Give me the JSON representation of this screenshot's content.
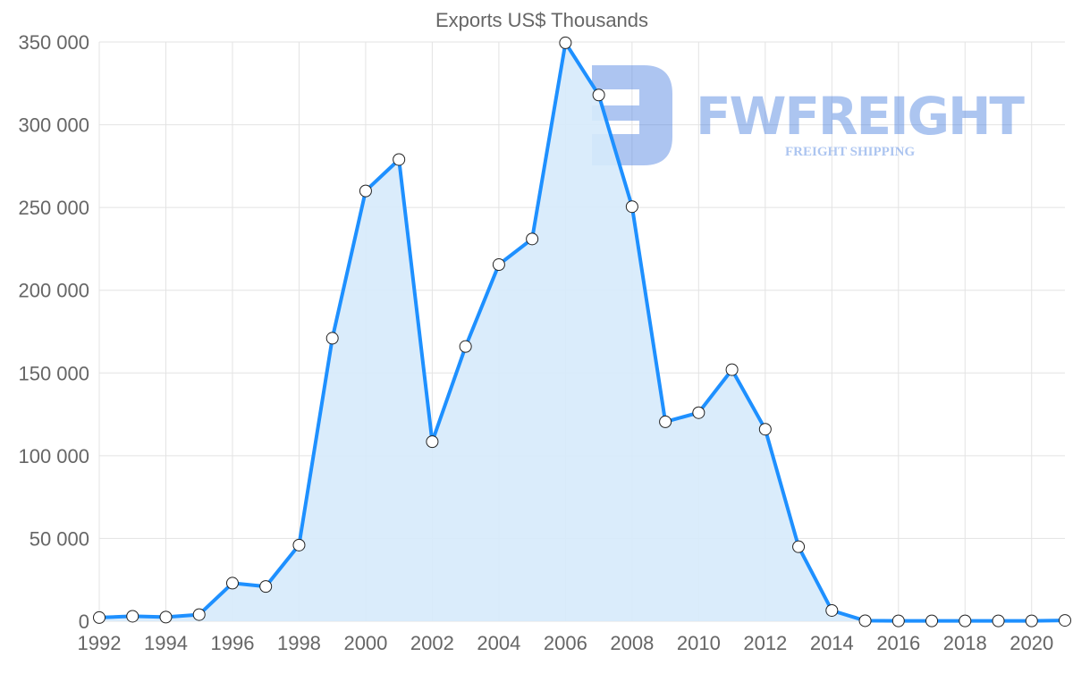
{
  "chart_data": {
    "type": "area",
    "title": "Exports US$ Thousands",
    "xlabel": "",
    "ylabel": "",
    "x": [
      1992,
      1993,
      1994,
      1995,
      1996,
      1997,
      1998,
      1999,
      2000,
      2001,
      2002,
      2003,
      2004,
      2005,
      2006,
      2007,
      2008,
      2009,
      2010,
      2011,
      2012,
      2013,
      2014,
      2015,
      2016,
      2017,
      2018,
      2019,
      2020,
      2021
    ],
    "series": [
      {
        "name": "Exports US$ Thousands",
        "values": [
          2200,
          3000,
          2500,
          4000,
          23000,
          21000,
          46000,
          171000,
          260000,
          279000,
          108500,
          166000,
          215500,
          231000,
          349500,
          318000,
          250500,
          120500,
          126000,
          152000,
          116000,
          45000,
          6500,
          300,
          200,
          200,
          200,
          200,
          200,
          500
        ]
      }
    ],
    "xlim": [
      1992,
      2021
    ],
    "ylim": [
      0,
      350000
    ],
    "x_ticks": [
      "1992",
      "1994",
      "1996",
      "1998",
      "2000",
      "2002",
      "2004",
      "2006",
      "2008",
      "2010",
      "2012",
      "2014",
      "2016",
      "2018",
      "2020"
    ],
    "y_ticks": [
      "0",
      "50 000",
      "100 000",
      "150 000",
      "200 000",
      "250 000",
      "300 000",
      "350 000"
    ],
    "grid": true,
    "legend": "none",
    "colors": {
      "line": "#1e90ff",
      "fill": "#d6eafb",
      "grid": "#e3e3e3"
    },
    "watermark": {
      "brand": "FWFREIGHT",
      "tagline": "FREIGHT SHIPPING"
    }
  }
}
